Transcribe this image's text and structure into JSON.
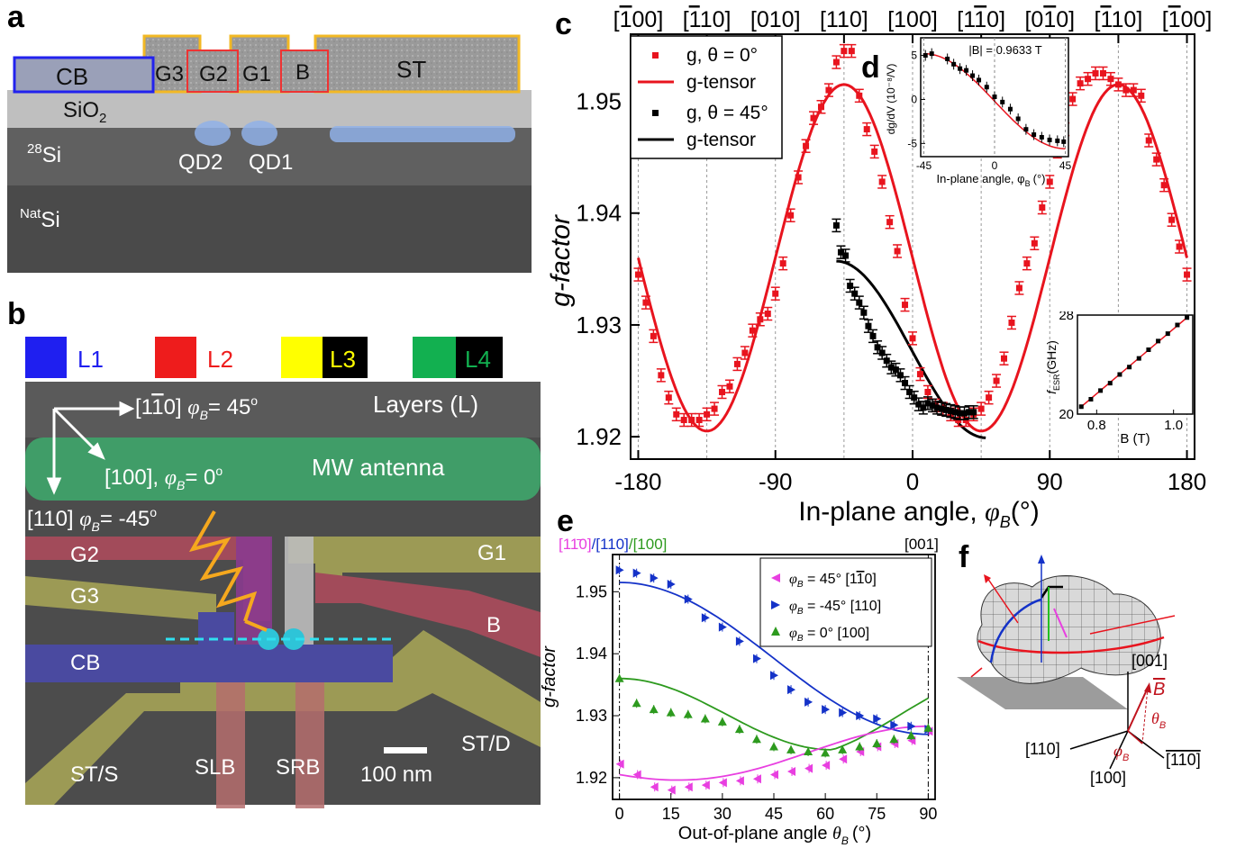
{
  "panel_letters": {
    "a": "a",
    "b": "b",
    "c": "c",
    "d": "d",
    "e": "e",
    "f": "f"
  },
  "panel_a": {
    "labels": {
      "CB": "CB",
      "G3": "G3",
      "G2": "G2",
      "G1": "G1",
      "B": "B",
      "ST": "ST",
      "SiO2": "SiO",
      "SiO2_sub": "2",
      "Si28_sup": "28",
      "Si28": "Si",
      "QD2": "QD2",
      "QD1": "QD1",
      "NatSi_sup": "Nat",
      "NatSi": "Si"
    }
  },
  "panel_b": {
    "legend": [
      {
        "label": "L1",
        "color": "#1f1ff0",
        "text_color": "#1f1ff0",
        "box": "#ffffff"
      },
      {
        "label": "L2",
        "color": "#ee1c1c",
        "text_color": "#ee1c1c",
        "box": "#ffffff"
      },
      {
        "label": "L3",
        "color": "#ffff00",
        "text_color": "#ffff00",
        "box": "#000000"
      },
      {
        "label": "L4",
        "color": "#12b050",
        "text_color": "#12b050",
        "box": "#000000"
      }
    ],
    "labels": {
      "dir1": "[1",
      "dir1_bar": "1",
      "dir1_end": "0] ",
      "dir1_phi": "φ",
      "dir1_phi_sub": "B",
      "dir1_val": "= 45",
      "dir1_deg": "o",
      "dir2": "[100], ",
      "dir2_phi": "φ",
      "dir2_phi_sub": "B",
      "dir2_val": "= 0",
      "dir2_deg": "o",
      "dir3": "[110] ",
      "dir3_phi": "φ",
      "dir3_phi_sub": "B",
      "dir3_val": "= -45",
      "dir3_deg": "o",
      "layers": "Layers (L)",
      "mw": "MW antenna",
      "G2": "G2",
      "G1": "G1",
      "G3": "G3",
      "B": "B",
      "CB": "CB",
      "STD": "ST/D",
      "STS": "ST/S",
      "SLB": "SLB",
      "SRB": "SRB",
      "scale": "100 nm"
    }
  },
  "panel_c": {
    "top_axis": [
      "[100]",
      "[110]",
      "[010]",
      "[110]",
      "[100]",
      "[110]",
      "[010]",
      "[110]",
      "[100]"
    ],
    "top_axis_bars": [
      0,
      0,
      -1,
      -1,
      -1,
      1,
      1,
      0,
      0
    ],
    "ylabel": "g-factor",
    "xlabel": "In-plane angle, ",
    "xlabel_phi": "φ",
    "xlabel_sub": "B",
    "xlabel_unit": "(°)",
    "legend": [
      "g, θ = 0°",
      "g-tensor",
      "g, θ = 45°",
      "g-tensor"
    ],
    "colors": {
      "red": "#e8141e",
      "black": "#000000",
      "grid": "#888888"
    }
  },
  "panel_d": {
    "title": "|B| = 0.9633 T",
    "ylabel": "dg/dV (10⁻⁸/V)",
    "xlabel": "In-plane angle, φ",
    "xlabel_sub": "B",
    "xlabel_unit": "(°)"
  },
  "panel_inset": {
    "ylabel": "f",
    "ylabel_sub": "ESR",
    "ylabel_unit": "(GHz)",
    "xlabel": "B (T)"
  },
  "panel_e": {
    "top_left_a": "[11̄0]",
    "top_left_b": "/[110]",
    "top_left_c": "/[100]",
    "top_right": "[001]",
    "ylabel": "g-factor",
    "xlabel": "Out-of-plane angle ",
    "xlabel_theta": "θ",
    "xlabel_sub": "B",
    "xlabel_unit": "(°)",
    "legend": [
      {
        "phi": "φ",
        "sub": "B",
        "eq": " =  45° [1",
        "bar": "1",
        "end": "0]",
        "color": "#e83fe0"
      },
      {
        "phi": "φ",
        "sub": "B",
        "eq": " = -45° [110]",
        "bar": "",
        "end": "",
        "color": "#1432c8"
      },
      {
        "phi": "φ",
        "sub": "B",
        "eq": " =    0° [100]",
        "bar": "",
        "end": "",
        "color": "#2d9a1e"
      }
    ]
  },
  "panel_f": {
    "labels": {
      "z": "[001]",
      "x110": "[110]",
      "x100": "[100]",
      "x1b10": "[110]",
      "B": "B",
      "theta": "θ",
      "theta_sub": "B",
      "phi": "φ",
      "phi_sub": "B"
    }
  },
  "chart_data": [
    {
      "type": "scatter",
      "panel": "c",
      "xlabel": "In-plane angle, φB (°)",
      "ylabel": "g-factor",
      "xlim": [
        -185,
        185
      ],
      "ylim": [
        1.918,
        1.956
      ],
      "xticks": [
        -180,
        -90,
        0,
        90,
        180
      ],
      "yticks": [
        1.92,
        1.93,
        1.94,
        1.95
      ],
      "series": [
        {
          "name": "g, θ = 0°",
          "color": "#e8141e",
          "x": [
            -180,
            -175,
            -170,
            -165,
            -160,
            -155,
            -150,
            -145,
            -140,
            -135,
            -130,
            -125,
            -120,
            -115,
            -110,
            -105,
            -100,
            -95,
            -90,
            -85,
            -80,
            -75,
            -70,
            -65,
            -60,
            -55,
            -50,
            -45,
            -40,
            -35,
            -30,
            -25,
            -20,
            -15,
            -10,
            -5,
            0,
            5,
            10,
            15,
            20,
            25,
            30,
            35,
            40,
            45,
            50,
            55,
            60,
            65,
            70,
            75,
            80,
            85,
            90,
            95,
            100,
            105,
            110,
            115,
            120,
            125,
            130,
            135,
            140,
            145,
            150,
            155,
            160,
            165,
            170,
            175,
            180
          ],
          "y": [
            1.9345,
            1.932,
            1.929,
            1.9255,
            1.9235,
            1.922,
            1.9215,
            1.9215,
            1.9215,
            1.922,
            1.9225,
            1.924,
            1.9245,
            1.9265,
            1.9275,
            1.9295,
            1.9305,
            1.931,
            1.9328,
            1.9355,
            1.9398,
            1.9432,
            1.946,
            1.9485,
            1.9495,
            1.951,
            1.9535,
            1.9545,
            1.9545,
            1.9505,
            1.9475,
            1.9455,
            1.9428,
            1.9392,
            1.9366,
            1.9318,
            1.9288,
            1.9256,
            1.924,
            1.9228,
            1.9225,
            1.922,
            1.9215,
            1.9215,
            1.922,
            1.9225,
            1.9235,
            1.925,
            1.927,
            1.9302,
            1.9333,
            1.9355,
            1.9373,
            1.9405,
            1.9428,
            1.9455,
            1.9475,
            1.9502,
            1.9516,
            1.952,
            1.9525,
            1.9525,
            1.952,
            1.9515,
            1.951,
            1.951,
            1.9505,
            1.9465,
            1.9448,
            1.9425,
            1.9394,
            1.937,
            1.9345
          ]
        },
        {
          "name": "g-tensor (θ = 0°)",
          "color": "#e8141e",
          "line": true
        },
        {
          "name": "g, θ = 45°",
          "color": "#000000",
          "x": [
            -50,
            -47,
            -44,
            -41,
            -38,
            -35,
            -32,
            -29,
            -26,
            -23,
            -20,
            -17,
            -14,
            -11,
            -8,
            -5,
            -2,
            1,
            4,
            7,
            10,
            13,
            16,
            19,
            22,
            25,
            28,
            31,
            34,
            37,
            40
          ],
          "y": [
            1.9389,
            1.9365,
            1.9362,
            1.9335,
            1.9328,
            1.932,
            1.9311,
            1.9299,
            1.929,
            1.928,
            1.9275,
            1.9268,
            1.9262,
            1.926,
            1.9255,
            1.9248,
            1.924,
            1.9235,
            1.9229,
            1.9226,
            1.923,
            1.9228,
            1.9226,
            1.9225,
            1.9224,
            1.9223,
            1.9222,
            1.9221,
            1.9221,
            1.9222,
            1.9222
          ]
        },
        {
          "name": "g-tensor (θ = 45°)",
          "color": "#000000",
          "line": true
        }
      ]
    },
    {
      "type": "scatter",
      "panel": "d",
      "title": "|B| = 0.9633 T",
      "xlabel": "In-plane angle, φB (°)",
      "ylabel": "dg/dV (10⁻⁸/V)",
      "xlim": [
        -47,
        47
      ],
      "ylim": [
        -6.5,
        7
      ],
      "xticks": [
        -45,
        0,
        45
      ],
      "yticks": [
        -5,
        0,
        5
      ],
      "series": [
        {
          "name": "dg/dV",
          "color": "#000000",
          "x": [
            -44,
            -40,
            -30,
            -26,
            -22,
            -18,
            -14,
            -10,
            -5,
            0,
            5,
            10,
            15,
            20,
            25,
            30,
            35,
            40,
            44
          ],
          "y": [
            5.0,
            5.2,
            4.6,
            4.0,
            3.5,
            3.3,
            2.7,
            2.2,
            1.4,
            0.3,
            -0.3,
            -1.1,
            -2.2,
            -3.4,
            -4.0,
            -4.3,
            -4.6,
            -4.7,
            -4.8
          ]
        }
      ]
    },
    {
      "type": "scatter",
      "panel": "inset",
      "xlabel": "B (T)",
      "ylabel": "fESR (GHz)",
      "xlim": [
        0.75,
        1.05
      ],
      "ylim": [
        20,
        28
      ],
      "xticks": [
        0.8,
        1.0
      ],
      "yticks": [
        20,
        24,
        28
      ],
      "series": [
        {
          "name": "fESR",
          "color": "#000000",
          "x": [
            0.76,
            0.785,
            0.81,
            0.835,
            0.86,
            0.885,
            0.91,
            0.935,
            0.96,
            0.985,
            1.01,
            1.035
          ],
          "y": [
            20.6,
            21.2,
            21.9,
            22.5,
            23.2,
            23.8,
            24.5,
            25.2,
            25.9,
            26.5,
            27.2,
            27.8
          ]
        }
      ]
    },
    {
      "type": "scatter",
      "panel": "e",
      "xlabel": "Out-of-plane angle θB (°)",
      "ylabel": "g-factor",
      "xlim": [
        -2,
        92
      ],
      "ylim": [
        1.9165,
        1.956
      ],
      "xticks": [
        0,
        15,
        30,
        45,
        60,
        75,
        90
      ],
      "yticks": [
        1.92,
        1.93,
        1.94,
        1.95
      ],
      "series": [
        {
          "name": "φB = 45° [1-10]",
          "color": "#e83fe0",
          "x": [
            0,
            5,
            10,
            15,
            20,
            25,
            30,
            35,
            40,
            45,
            50,
            55,
            60,
            65,
            70,
            75,
            80,
            85,
            90
          ],
          "y": [
            1.9222,
            1.9205,
            1.9185,
            1.918,
            1.9185,
            1.9188,
            1.9192,
            1.9195,
            1.9198,
            1.9205,
            1.921,
            1.9215,
            1.922,
            1.923,
            1.9242,
            1.925,
            1.9255,
            1.926,
            1.9275
          ]
        },
        {
          "name": "φB = -45° [110]",
          "color": "#1432c8",
          "x": [
            0,
            5,
            10,
            15,
            20,
            25,
            30,
            35,
            40,
            45,
            50,
            55,
            60,
            65,
            70,
            75,
            80,
            85,
            90
          ],
          "y": [
            1.9535,
            1.953,
            1.9522,
            1.9512,
            1.9488,
            1.9458,
            1.9443,
            1.942,
            1.9392,
            1.9365,
            1.9342,
            1.9322,
            1.931,
            1.9305,
            1.93,
            1.9295,
            1.9285,
            1.9283,
            1.9278
          ]
        },
        {
          "name": "φB = 0° [100]",
          "color": "#2d9a1e",
          "x": [
            0,
            5,
            10,
            15,
            20,
            25,
            30,
            35,
            40,
            45,
            50,
            55,
            60,
            65,
            70,
            75,
            80,
            85,
            90
          ],
          "y": [
            1.936,
            1.932,
            1.931,
            1.9305,
            1.9302,
            1.9295,
            1.929,
            1.9278,
            1.9262,
            1.925,
            1.9245,
            1.9242,
            1.924,
            1.9245,
            1.925,
            1.9255,
            1.9262,
            1.9268,
            1.928
          ]
        }
      ]
    }
  ]
}
